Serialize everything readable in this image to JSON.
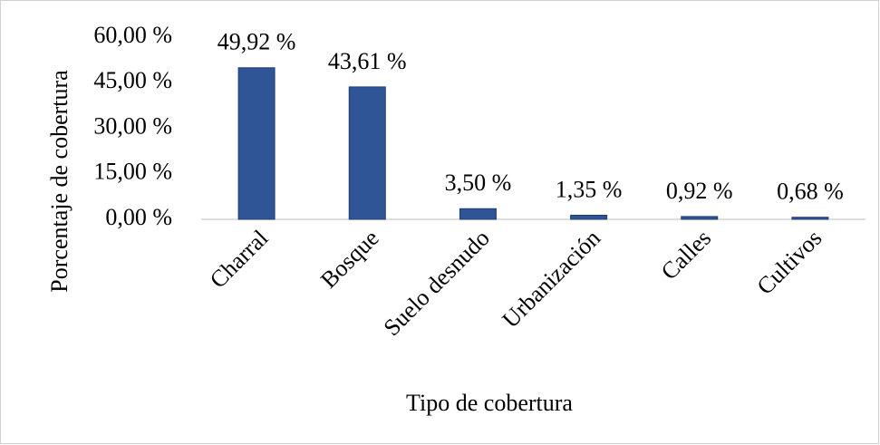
{
  "chart_data": {
    "type": "bar",
    "x_label": "Tipo de cobertura",
    "y_label": "Porcentaje de cobertura",
    "categories": [
      "Charral",
      "Bosque",
      "Suelo desnudo",
      "Urbanización",
      "Calles",
      "Cultivos"
    ],
    "values": [
      49.92,
      43.61,
      3.5,
      1.35,
      0.92,
      0.68
    ],
    "value_labels": [
      "49,92 %",
      "43,61 %",
      "3,50 %",
      "1,35 %",
      "0,92 %",
      "0,68 %"
    ],
    "color": "#2f5597",
    "ylim": [
      0,
      60
    ],
    "yticks": [
      {
        "value": 0,
        "label": "0,00 %"
      },
      {
        "value": 15,
        "label": "15,00 %"
      },
      {
        "value": 30,
        "label": "30,00 %"
      },
      {
        "value": 45,
        "label": "45,00 %"
      },
      {
        "value": 60,
        "label": "60,00 %"
      }
    ],
    "grid": false
  }
}
